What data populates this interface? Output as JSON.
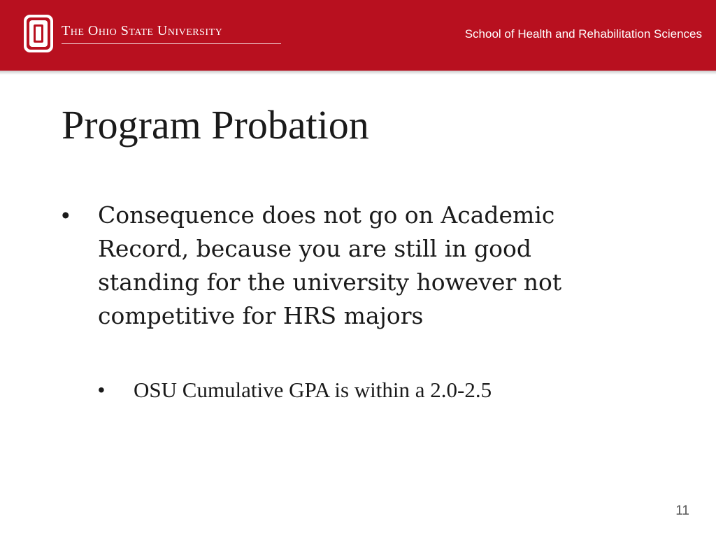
{
  "header": {
    "university_name": "The Ohio State University",
    "school_name": "School of Health and Rehabilitation Sciences",
    "brand_color": "#b8101f",
    "logo_icon": "block-o-logo-icon"
  },
  "slide": {
    "title": "Program Probation",
    "bullets": [
      {
        "text": "Consequence does not go on Academic Record, because you are still in good standing for the university however not competitive for HRS majors",
        "level": 1
      },
      {
        "text": "OSU Cumulative GPA is within a 2.0-2.5",
        "level": 2
      }
    ],
    "bullet_glyph": "•",
    "page_number": "11"
  }
}
